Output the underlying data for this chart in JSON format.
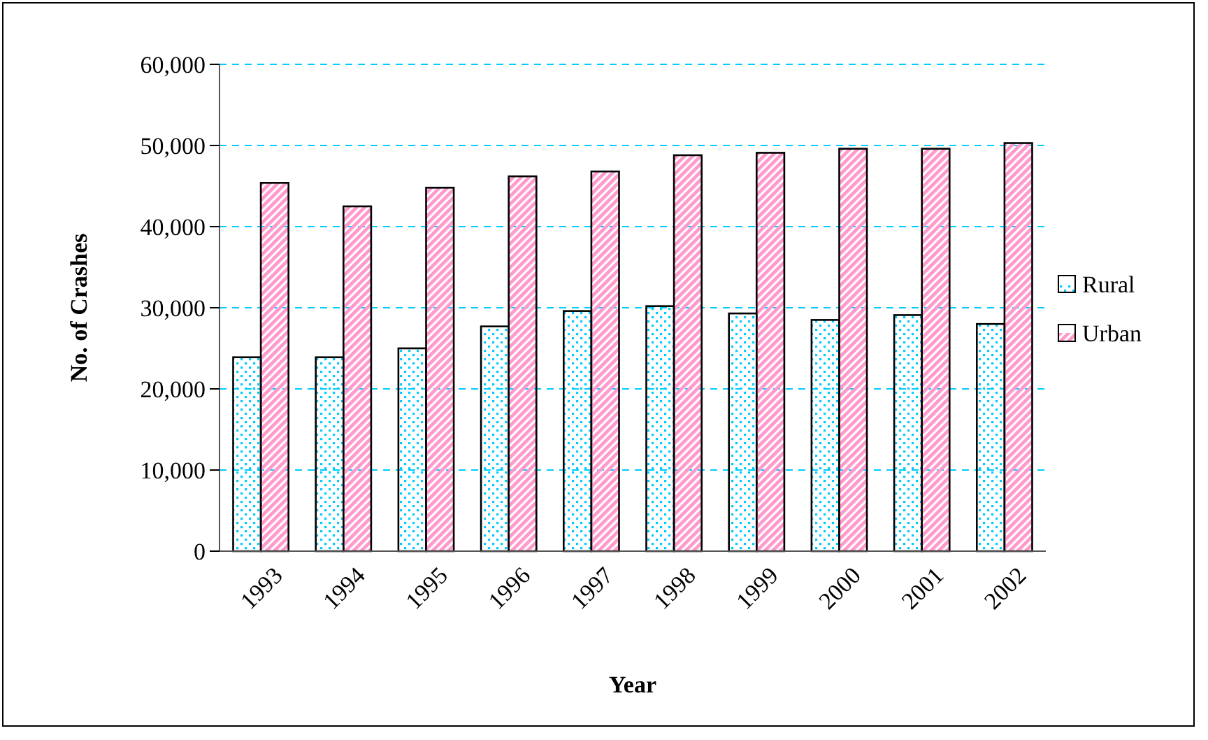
{
  "chart_data": {
    "type": "bar",
    "xlabel": "Year",
    "ylabel": "No. of Crashes",
    "categories": [
      "1993",
      "1994",
      "1995",
      "1996",
      "1997",
      "1998",
      "1999",
      "2000",
      "2001",
      "2002"
    ],
    "series": [
      {
        "name": "Rural",
        "color": "#00ccff",
        "values": [
          23900,
          23900,
          25000,
          27700,
          29600,
          30200,
          29300,
          28500,
          29100,
          28000
        ]
      },
      {
        "name": "Urban",
        "color": "#ff99cc",
        "values": [
          45400,
          42500,
          44800,
          46200,
          46800,
          48800,
          49100,
          49600,
          49600,
          50300
        ]
      }
    ],
    "ylim": [
      0,
      60000
    ],
    "yticks": [
      0,
      {
        "value": 10000,
        "label": "10,000"
      },
      {
        "value": 20000,
        "label": "20,000"
      },
      {
        "value": 30000,
        "label": "30,000"
      },
      {
        "value": 40000,
        "label": "40,000"
      },
      {
        "value": 50000,
        "label": "50,000"
      },
      {
        "value": 60000,
        "label": "60,000"
      }
    ],
    "grid": "y",
    "legend": "right"
  }
}
